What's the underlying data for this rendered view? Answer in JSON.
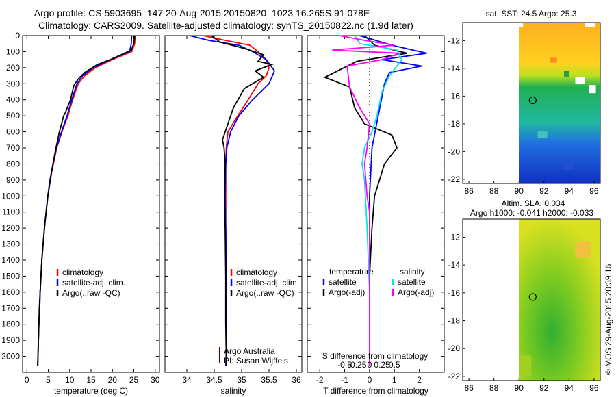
{
  "header": {
    "line1": "Argo profile: CS 5903695_147 20-Aug-2015 20150820_1023 16.265S 91.078E",
    "line2": "Climatology: CARS2009. Satellite-adjusted climatology: synTS_20150822.nc (1.9d later)"
  },
  "colors": {
    "climatology": "#ff0000",
    "satellite": "#0000ff",
    "argo": "#000000",
    "sat_salinity": "#00e5e5",
    "argo_salinity": "#ff00ff"
  },
  "chart_data": [
    {
      "type": "line",
      "id": "temperature",
      "xlabel": "temperature (deg C)",
      "ylim": [
        2100,
        0
      ],
      "xlim": [
        -1,
        31
      ],
      "xticks": [
        "0",
        "5",
        "10",
        "15",
        "20",
        "25",
        "30"
      ],
      "xtick_values": [
        0,
        5,
        10,
        15,
        20,
        25,
        30
      ],
      "yticks": [
        "0",
        "100",
        "200",
        "300",
        "400",
        "500",
        "600",
        "700",
        "800",
        "900",
        "1000",
        "1100",
        "1200",
        "1300",
        "1400",
        "1500",
        "1600",
        "1700",
        "1800",
        "1900",
        "2000"
      ],
      "ytick_values": [
        0,
        100,
        200,
        300,
        400,
        500,
        600,
        700,
        800,
        900,
        1000,
        1100,
        1200,
        1300,
        1400,
        1500,
        1600,
        1700,
        1800,
        1900,
        2000
      ],
      "legend": [
        "climatology",
        "satellite-adj. clim.",
        "Argo(..raw -QC)"
      ],
      "series": [
        {
          "name": "climatology",
          "color": "#ff0000",
          "points": [
            [
              25.3,
              0
            ],
            [
              25.2,
              50
            ],
            [
              24.5,
              100
            ],
            [
              20,
              150
            ],
            [
              16,
              200
            ],
            [
              13.5,
              250
            ],
            [
              12,
              300
            ],
            [
              10.7,
              400
            ],
            [
              9.6,
              500
            ],
            [
              8.2,
              600
            ],
            [
              7,
              700
            ],
            [
              6.2,
              800
            ],
            [
              5.4,
              900
            ],
            [
              4.9,
              1000
            ],
            [
              4.5,
              1100
            ],
            [
              4.1,
              1200
            ],
            [
              3.8,
              1300
            ],
            [
              3.5,
              1400
            ],
            [
              3.3,
              1500
            ],
            [
              3.1,
              1600
            ],
            [
              3,
              1700
            ],
            [
              2.8,
              1800
            ],
            [
              2.7,
              1900
            ],
            [
              2.6,
              2000
            ],
            [
              2.55,
              2060
            ]
          ]
        },
        {
          "name": "satellite-adj. clim.",
          "color": "#0000ff",
          "points": [
            [
              24.5,
              0
            ],
            [
              24.4,
              50
            ],
            [
              24,
              100
            ],
            [
              19.5,
              150
            ],
            [
              15.5,
              200
            ],
            [
              13,
              250
            ],
            [
              11.7,
              300
            ],
            [
              10.5,
              400
            ],
            [
              9.4,
              500
            ],
            [
              8.1,
              600
            ],
            [
              6.9,
              700
            ],
            [
              6.1,
              800
            ],
            [
              5.4,
              900
            ],
            [
              4.9,
              1000
            ],
            [
              4.5,
              1100
            ],
            [
              4.1,
              1200
            ],
            [
              3.8,
              1300
            ],
            [
              3.5,
              1400
            ],
            [
              3.3,
              1500
            ],
            [
              3.1,
              1600
            ],
            [
              3,
              1700
            ],
            [
              2.8,
              1800
            ],
            [
              2.7,
              1900
            ],
            [
              2.6,
              2000
            ],
            [
              2.55,
              2060
            ]
          ]
        },
        {
          "name": "Argo(..raw -QC)",
          "color": "#000000",
          "points": [
            [
              25.2,
              0
            ],
            [
              25,
              50
            ],
            [
              24.4,
              90
            ],
            [
              22,
              120
            ],
            [
              19.5,
              150
            ],
            [
              16.5,
              180
            ],
            [
              13.5,
              230
            ],
            [
              12,
              270
            ],
            [
              11,
              310
            ],
            [
              10.2,
              400
            ],
            [
              9,
              480
            ],
            [
              8.6,
              500
            ],
            [
              7.6,
              600
            ],
            [
              6.8,
              700
            ],
            [
              6.1,
              800
            ],
            [
              5.5,
              900
            ],
            [
              4.9,
              1000
            ],
            [
              4.5,
              1100
            ],
            [
              4.1,
              1200
            ],
            [
              3.8,
              1300
            ],
            [
              3.5,
              1400
            ],
            [
              3.3,
              1500
            ],
            [
              3.1,
              1600
            ],
            [
              2.9,
              1700
            ],
            [
              2.8,
              1800
            ],
            [
              2.7,
              1900
            ],
            [
              2.6,
              2000
            ],
            [
              2.5,
              2060
            ]
          ]
        }
      ]
    },
    {
      "type": "line",
      "id": "salinity",
      "xlabel": "salinity",
      "ylim": [
        2100,
        0
      ],
      "xlim": [
        33.6,
        36.1
      ],
      "xticks": [
        "34",
        "34.5",
        "35",
        "35.5",
        "36"
      ],
      "xtick_values": [
        34,
        34.5,
        35,
        35.5,
        36
      ],
      "legend": [
        "climatology",
        "satellite-adj. clim.",
        "Argo(..raw -QC)"
      ],
      "annotation": [
        "Argo Australia",
        "PI: Susan Wijffels"
      ],
      "series": [
        {
          "name": "climatology",
          "color": "#ff0000",
          "points": [
            [
              34.3,
              0
            ],
            [
              34.7,
              30
            ],
            [
              35.15,
              60
            ],
            [
              35.3,
              100
            ],
            [
              35.45,
              150
            ],
            [
              35.5,
              200
            ],
            [
              35.45,
              250
            ],
            [
              35.3,
              300
            ],
            [
              35.12,
              400
            ],
            [
              34.93,
              500
            ],
            [
              34.75,
              600
            ],
            [
              34.72,
              700
            ],
            [
              34.71,
              800
            ],
            [
              34.71,
              1000
            ],
            [
              34.71,
              1200
            ],
            [
              34.72,
              1500
            ],
            [
              34.72,
              1800
            ],
            [
              34.72,
              2000
            ],
            [
              34.72,
              2060
            ]
          ]
        },
        {
          "name": "satellite-adj. clim.",
          "color": "#0000ff",
          "points": [
            [
              34.05,
              0
            ],
            [
              34.4,
              30
            ],
            [
              34.95,
              60
            ],
            [
              35.2,
              100
            ],
            [
              35.45,
              150
            ],
            [
              35.6,
              220
            ],
            [
              35.5,
              300
            ],
            [
              35.2,
              400
            ],
            [
              34.95,
              500
            ],
            [
              34.8,
              600
            ],
            [
              34.73,
              700
            ],
            [
              34.71,
              800
            ],
            [
              34.7,
              1000
            ],
            [
              34.71,
              1200
            ],
            [
              34.72,
              1500
            ],
            [
              34.72,
              1800
            ],
            [
              34.72,
              2000
            ],
            [
              34.71,
              2060
            ]
          ]
        },
        {
          "name": "Argo(..raw -QC)",
          "color": "#000000",
          "points": [
            [
              34.45,
              0
            ],
            [
              34.6,
              40
            ],
            [
              35.05,
              80
            ],
            [
              35.4,
              120
            ],
            [
              35.3,
              160
            ],
            [
              35.55,
              180
            ],
            [
              35.25,
              220
            ],
            [
              35.4,
              260
            ],
            [
              35.05,
              330
            ],
            [
              34.85,
              450
            ],
            [
              34.75,
              550
            ],
            [
              34.65,
              650
            ],
            [
              34.68,
              700
            ],
            [
              34.7,
              800
            ],
            [
              34.69,
              1000
            ],
            [
              34.7,
              1200
            ],
            [
              34.71,
              1500
            ],
            [
              34.71,
              1800
            ],
            [
              34.72,
              2000
            ],
            [
              34.72,
              2060
            ]
          ]
        }
      ]
    },
    {
      "type": "line",
      "id": "difference",
      "xlabel": "T difference from climatology",
      "x2label": "S difference from climatology",
      "ylim": [
        2100,
        0
      ],
      "xlim": [
        -2.5,
        3
      ],
      "xticks": [
        "-2",
        "-1",
        "0",
        "1",
        "2"
      ],
      "xtick_values": [
        -2,
        -1,
        0,
        1,
        2
      ],
      "x2ticks": [
        "-0.5",
        "-0.25",
        "0",
        "0.25",
        "0.5"
      ],
      "legend_groups": [
        {
          "title": "temperature",
          "items": [
            "satellite",
            "Argo(-adj)"
          ]
        },
        {
          "title": "salinity",
          "items": [
            "satellite",
            "Argo(-adj)"
          ]
        }
      ],
      "series": [
        {
          "name": "satellite",
          "group": "temperature",
          "color": "#0000ff",
          "points": [
            [
              -0.4,
              0
            ],
            [
              0.9,
              60
            ],
            [
              2.3,
              110
            ],
            [
              0.5,
              150
            ],
            [
              2.1,
              190
            ],
            [
              0.8,
              230
            ],
            [
              0.6,
              300
            ],
            [
              0.35,
              500
            ],
            [
              0.1,
              700
            ],
            [
              0,
              1000
            ],
            [
              0,
              1500
            ],
            [
              0,
              2060
            ]
          ]
        },
        {
          "name": "Argo(-adj)",
          "group": "temperature",
          "color": "#000000",
          "points": [
            [
              -0.2,
              0
            ],
            [
              0.2,
              60
            ],
            [
              1.5,
              110
            ],
            [
              -0.5,
              160
            ],
            [
              -1.8,
              260
            ],
            [
              -0.8,
              320
            ],
            [
              -0.6,
              450
            ],
            [
              -0.2,
              550
            ],
            [
              0.9,
              620
            ],
            [
              1.1,
              700
            ],
            [
              0.6,
              800
            ],
            [
              0.4,
              900
            ],
            [
              0.2,
              1000
            ],
            [
              0.1,
              1200
            ],
            [
              0,
              1500
            ],
            [
              0,
              1800
            ],
            [
              0,
              2060
            ]
          ]
        },
        {
          "name": "satellite",
          "group": "salinity",
          "color": "#00e5e5",
          "points": [
            [
              -0.6,
              0
            ],
            [
              -0.4,
              50
            ],
            [
              1.1,
              90
            ],
            [
              1.3,
              150
            ],
            [
              0.8,
              250
            ],
            [
              0.5,
              350
            ],
            [
              0.3,
              500
            ],
            [
              0.1,
              600
            ],
            [
              -0.2,
              700
            ],
            [
              -0.3,
              800
            ],
            [
              -0.2,
              900
            ],
            [
              -0.1,
              1200
            ],
            [
              0,
              1600
            ],
            [
              0,
              2060
            ]
          ]
        },
        {
          "name": "Argo(-adj)",
          "group": "salinity",
          "color": "#ff00ff",
          "points": [
            [
              -1.2,
              0
            ],
            [
              -0.2,
              30
            ],
            [
              1,
              60
            ],
            [
              -1.5,
              90
            ],
            [
              1.2,
              110
            ],
            [
              0.5,
              150
            ],
            [
              -0.9,
              190
            ],
            [
              -0.8,
              320
            ],
            [
              -0.4,
              450
            ],
            [
              0,
              550
            ],
            [
              -0.1,
              700
            ],
            [
              -0.2,
              800
            ],
            [
              -0.1,
              1000
            ],
            [
              0,
              1100
            ],
            [
              0,
              1400
            ],
            [
              0,
              2060
            ]
          ]
        }
      ]
    },
    {
      "type": "heatmap",
      "id": "sst_map",
      "title": "sat. SST: 24.5 Argo: 25.3",
      "xlim": [
        85.5,
        96.5
      ],
      "ylim": [
        -22.3,
        -10.7
      ],
      "xticks": [
        "86",
        "88",
        "90",
        "92",
        "94",
        "96"
      ],
      "xtick_values": [
        86,
        88,
        90,
        92,
        94,
        96
      ],
      "yticks": [
        "-12",
        "-14",
        "-16",
        "-18",
        "-20",
        "-22"
      ],
      "ytick_values": [
        -12,
        -14,
        -16,
        -18,
        -20,
        -22
      ],
      "argo_position": [
        91.1,
        -16.3
      ]
    },
    {
      "type": "heatmap",
      "id": "sla_map",
      "title": "Altim. SLA: 0.034",
      "subtitle": "Argo h1000: -0.041 h2000: -0.033",
      "xlim": [
        85.5,
        96.5
      ],
      "ylim": [
        -22.3,
        -10.7
      ],
      "xticks": [
        "86",
        "88",
        "90",
        "92",
        "94",
        "96"
      ],
      "xtick_values": [
        86,
        88,
        90,
        92,
        94,
        96
      ],
      "yticks": [
        "-12",
        "-14",
        "-16",
        "-18",
        "-20",
        "-22"
      ],
      "ytick_values": [
        -12,
        -14,
        -16,
        -18,
        -20,
        -22
      ],
      "argo_position": [
        91.1,
        -16.3
      ]
    }
  ],
  "credit": "©IMOS 29-Aug-2015 20:39:16"
}
